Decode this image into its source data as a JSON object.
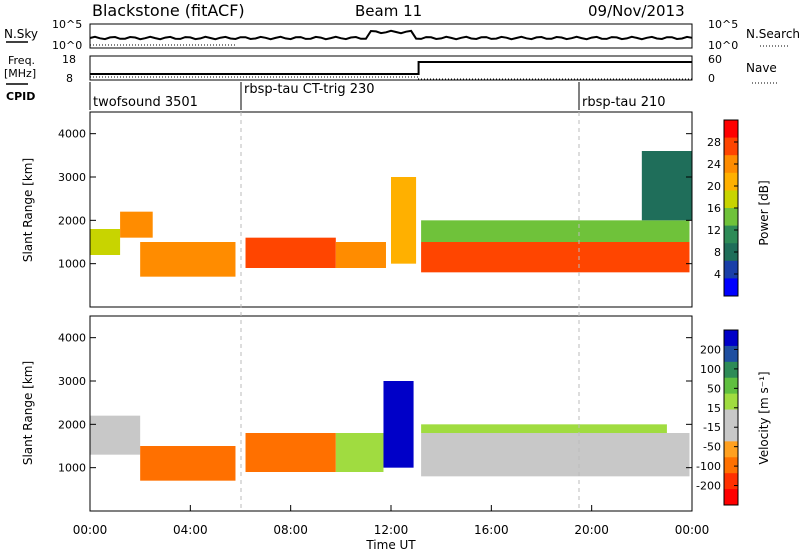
{
  "header": {
    "title": "Blackstone (fitACF)",
    "beam": "Beam 11",
    "date": "09/Nov/2013"
  },
  "noise_panel": {
    "left_label": "N.Sky",
    "right_label": "N.Search",
    "left_ticks": [
      "10^5",
      "10^0"
    ],
    "right_ticks": [
      "10^5",
      "10^0"
    ]
  },
  "freq_panel": {
    "left_label_1": "Freq.",
    "left_label_2": "[MHz]",
    "right_label": "Nave",
    "left_ticks": [
      "18",
      "8"
    ],
    "right_ticks": [
      "60",
      "0"
    ]
  },
  "cpid": {
    "label": "CPID",
    "segments": [
      {
        "name": "twofsound 3501",
        "start_hour": 0
      },
      {
        "name": "rbsp-tau CT-trig 230",
        "start_hour": 6
      },
      {
        "name": "rbsp-tau 210",
        "start_hour": 19.2
      }
    ]
  },
  "power_panel": {
    "ylabel": "Slant Range [km]",
    "yticks": [
      "4000",
      "3000",
      "2000",
      "1000"
    ],
    "colorbar_label": "Power [dB]",
    "colorbar_ticks": [
      "28",
      "24",
      "20",
      "16",
      "12",
      "8",
      "4"
    ],
    "colors": [
      "#ff0000",
      "#ff4500",
      "#ff8c00",
      "#ffb000",
      "#c8d400",
      "#6fc23a",
      "#2e8b57",
      "#1f6e5a",
      "#1a3fa8",
      "#0000ff"
    ]
  },
  "velocity_panel": {
    "ylabel": "Slant Range [km]",
    "yticks": [
      "4000",
      "3000",
      "2000",
      "1000"
    ],
    "colorbar_label": "Velocity [m s⁻¹]",
    "colorbar_ticks": [
      "200",
      "100",
      "50",
      "15",
      "-15",
      "-50",
      "-100",
      "-200"
    ],
    "colors": [
      "#0000c8",
      "#1f4fa0",
      "#2e8b57",
      "#60c040",
      "#a0dc40",
      "#c8c8c8",
      "#c8c8c8",
      "#ffa020",
      "#ff7000",
      "#ff3000",
      "#ff0000"
    ]
  },
  "xaxis": {
    "label": "Time UT",
    "ticks": [
      "00:00",
      "04:00",
      "08:00",
      "12:00",
      "16:00",
      "20:00",
      "00:00"
    ]
  },
  "chart_data": [
    {
      "type": "heatmap",
      "title": "Blackstone (fitACF)",
      "xlabel": "Time UT",
      "ylabel": "Slant Range [km]",
      "xlim": [
        0,
        24
      ],
      "ylim": [
        0,
        4500
      ],
      "colorbar": {
        "label": "Power [dB]",
        "range": [
          0,
          30
        ]
      },
      "bands": [
        {
          "t0": 0.0,
          "t1": 1.2,
          "r0": 1200,
          "r1": 1800,
          "value": 18
        },
        {
          "t0": 1.2,
          "t1": 2.5,
          "r0": 1600,
          "r1": 2200,
          "value": 22
        },
        {
          "t0": 2.0,
          "t1": 5.8,
          "r0": 700,
          "r1": 1500,
          "value": 24
        },
        {
          "t0": 6.2,
          "t1": 9.8,
          "r0": 900,
          "r1": 1600,
          "value": 28
        },
        {
          "t0": 9.8,
          "t1": 11.8,
          "r0": 900,
          "r1": 1500,
          "value": 22
        },
        {
          "t0": 12.0,
          "t1": 13.0,
          "r0": 1000,
          "r1": 3000,
          "value": 20
        },
        {
          "t0": 13.2,
          "t1": 23.9,
          "r0": 800,
          "r1": 1500,
          "value": 28
        },
        {
          "t0": 13.2,
          "t1": 23.9,
          "r0": 1500,
          "r1": 2000,
          "value": 12
        },
        {
          "t0": 22.0,
          "t1": 24.0,
          "r0": 2000,
          "r1": 3600,
          "value": 6
        }
      ]
    },
    {
      "type": "heatmap",
      "title": "Beam 11",
      "xlabel": "Time UT",
      "ylabel": "Slant Range [km]",
      "xlim": [
        0,
        24
      ],
      "ylim": [
        0,
        4500
      ],
      "colorbar": {
        "label": "Velocity [m s⁻¹]",
        "range": [
          -200,
          200
        ]
      },
      "bands": [
        {
          "t0": 0.0,
          "t1": 2.0,
          "r0": 1300,
          "r1": 2200,
          "value": -50
        },
        {
          "t0": 2.0,
          "t1": 5.8,
          "r0": 700,
          "r1": 1500,
          "value": -100
        },
        {
          "t0": 6.2,
          "t1": 9.8,
          "r0": 900,
          "r1": 1800,
          "value": -100
        },
        {
          "t0": 9.8,
          "t1": 11.7,
          "r0": 900,
          "r1": 1800,
          "value": 50
        },
        {
          "t0": 11.7,
          "t1": 12.9,
          "r0": 1000,
          "r1": 3000,
          "value": 200
        },
        {
          "t0": 13.2,
          "t1": 23.9,
          "r0": 800,
          "r1": 1800,
          "value": 0
        },
        {
          "t0": 13.2,
          "t1": 23.0,
          "r0": 1800,
          "r1": 2000,
          "value": 30
        }
      ]
    }
  ]
}
